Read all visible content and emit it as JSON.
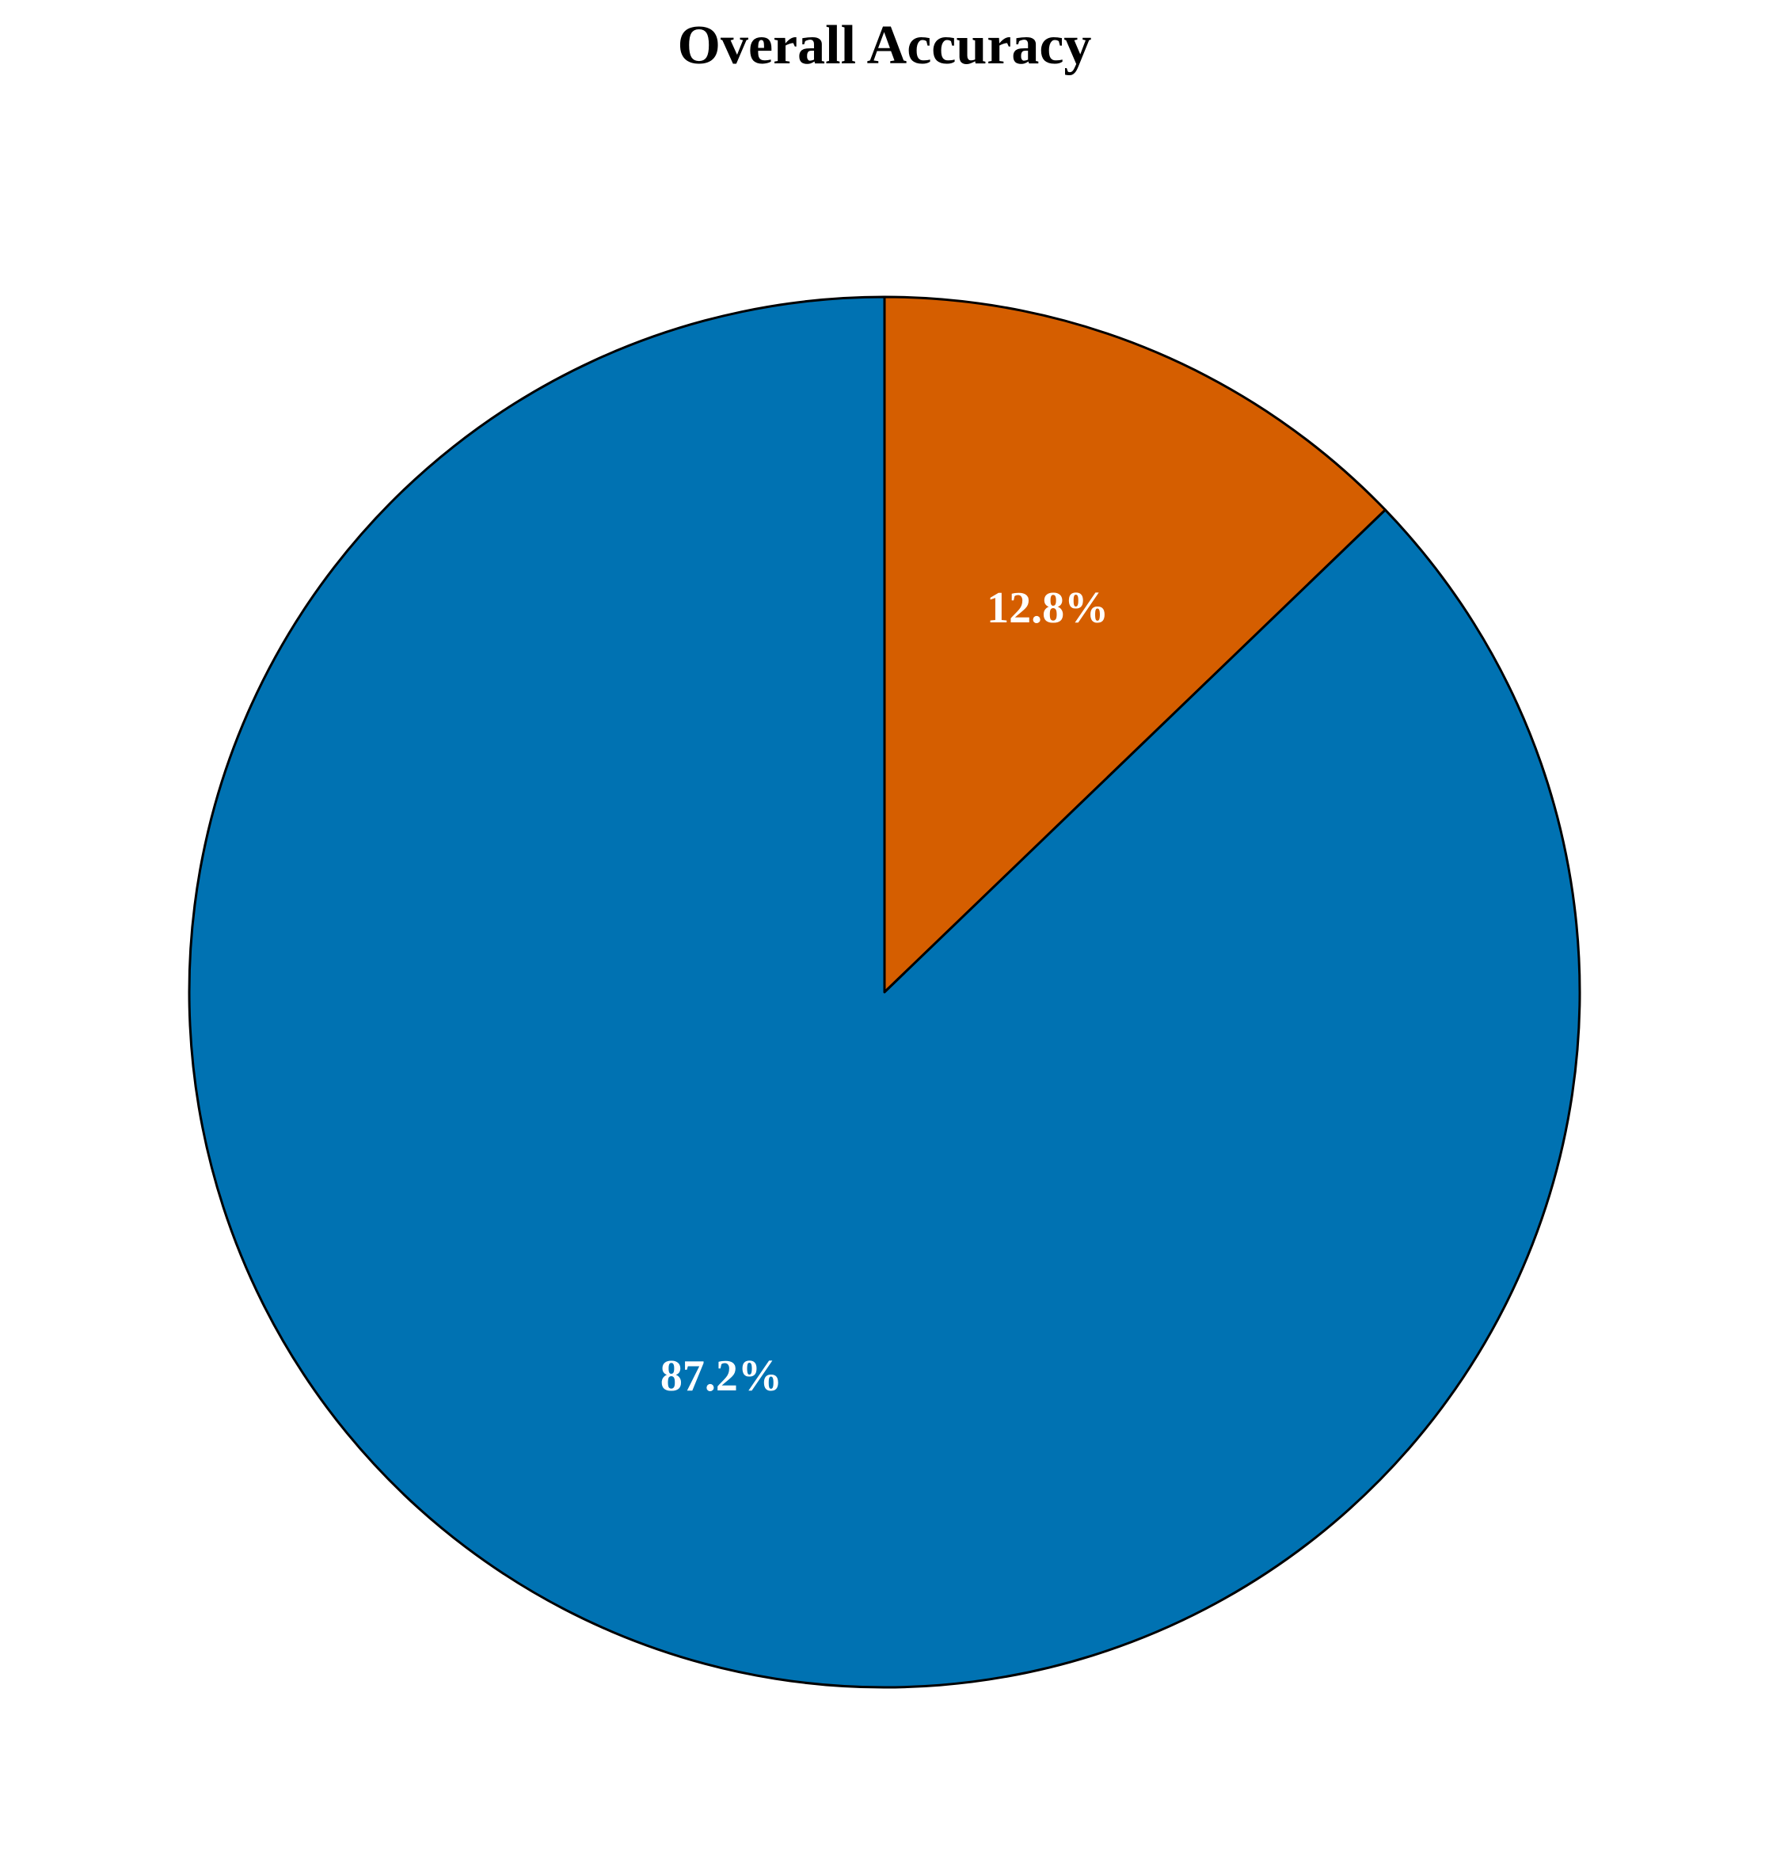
{
  "chart_data": {
    "type": "pie",
    "title": "Overall Accuracy",
    "start_angle": "top, clockwise",
    "slices": [
      {
        "name": "slice-1",
        "value": 12.8,
        "label": "12.8%",
        "color": "#D55E00"
      },
      {
        "name": "slice-2",
        "value": 87.2,
        "label": "87.2%",
        "color": "#0072B2"
      }
    ],
    "edge_color": "#000000",
    "label_color": "#FFFFFF"
  }
}
